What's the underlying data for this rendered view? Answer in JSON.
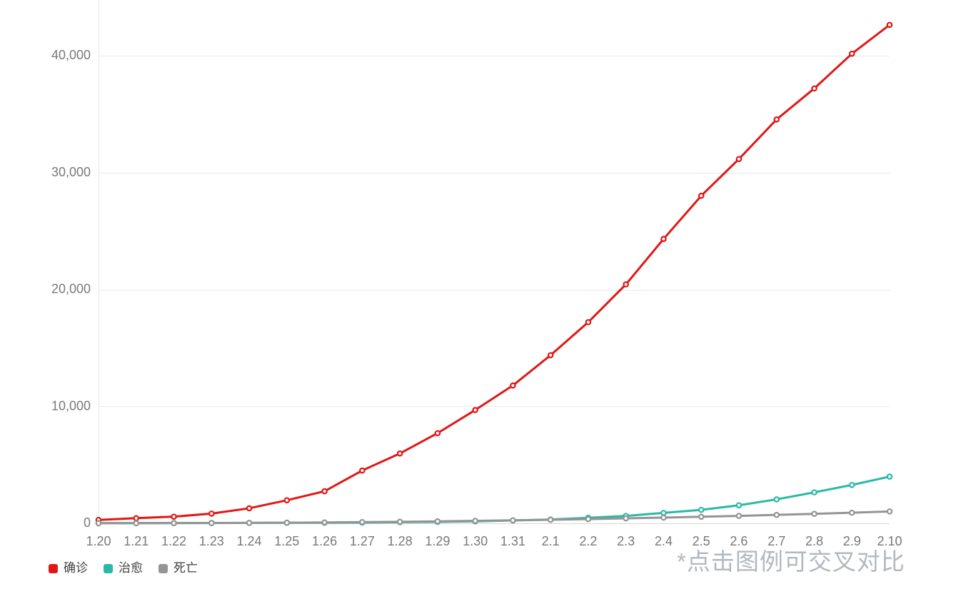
{
  "page": {
    "background": "#ffffff"
  },
  "watermark": {
    "text": "*点击图例可交叉对比",
    "color": "#b3b8bf"
  },
  "chart_data": {
    "type": "line",
    "title": "",
    "xlabel": "",
    "ylabel": "",
    "categories": [
      "1.20",
      "1.21",
      "1.22",
      "1.23",
      "1.24",
      "1.25",
      "1.26",
      "1.27",
      "1.28",
      "1.29",
      "1.30",
      "1.31",
      "2.1",
      "2.2",
      "2.3",
      "2.4",
      "2.5",
      "2.6",
      "2.7",
      "2.8",
      "2.9",
      "2.10"
    ],
    "series": [
      {
        "name": "确诊",
        "color": "#e01717",
        "values": [
          291,
          440,
          571,
          830,
          1287,
          1975,
          2744,
          4515,
          5974,
          7711,
          9692,
          11791,
          14380,
          17205,
          20438,
          24324,
          28018,
          31161,
          34546,
          37198,
          40171,
          42638
        ]
      },
      {
        "name": "治愈",
        "color": "#2bb8a5",
        "values": [
          25,
          25,
          28,
          34,
          38,
          49,
          51,
          60,
          103,
          124,
          171,
          243,
          328,
          475,
          632,
          892,
          1153,
          1540,
          2050,
          2649,
          3281,
          3996
        ]
      },
      {
        "name": "死亡",
        "color": "#949494",
        "values": [
          6,
          9,
          17,
          25,
          41,
          56,
          80,
          106,
          132,
          170,
          213,
          259,
          304,
          361,
          425,
          490,
          563,
          636,
          722,
          811,
          908,
          1016
        ]
      }
    ],
    "ylim": [
      0,
      44800
    ],
    "yticks": [
      0,
      10000,
      20000,
      30000,
      40000
    ],
    "ytick_labels": [
      "0",
      "10,000",
      "20,000",
      "30,000",
      "40,000"
    ],
    "grid": true,
    "legend_position": "bottom-left",
    "marker": "open-circle",
    "style": {
      "grid_color": "#e9e9e9",
      "axis_line_color": "#d6d6d6",
      "axis_text_color": "#787878",
      "marker_fill": "#ffffff"
    }
  }
}
